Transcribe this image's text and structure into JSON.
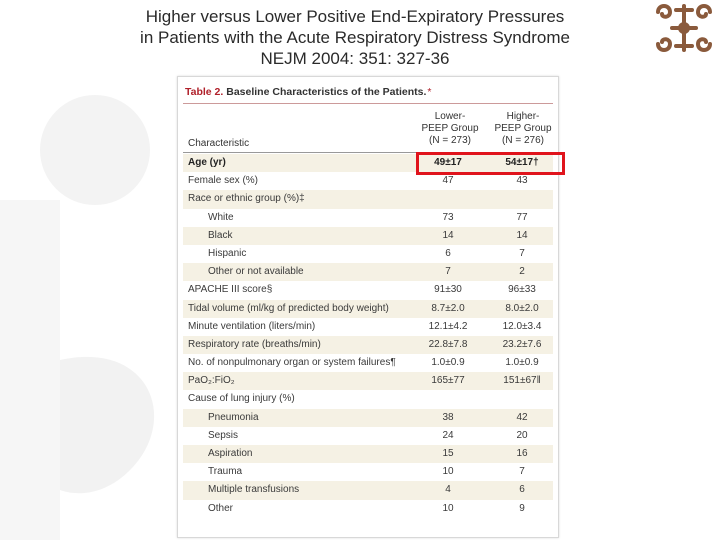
{
  "slide": {
    "title_lines": [
      "Higher versus Lower Positive End-Expiratory Pressures",
      "in Patients with the Acute Respiratory Distress Syndrome",
      "NEJM 2004: 351: 327-36"
    ]
  },
  "table": {
    "number": "Table 2.",
    "caption": "Baseline Characteristics of the Patients.",
    "caption_mark": "*",
    "column_header_characteristic": "Characteristic",
    "lower_group": {
      "line1": "Lower-",
      "line2": "PEEP Group",
      "line3": "(N = 273)"
    },
    "higher_group": {
      "line1": "Higher-",
      "line2": "PEEP Group",
      "line3": "(N = 276)"
    },
    "rows": [
      {
        "label": "Age (yr)",
        "lower": "49±17",
        "higher": "54±17†"
      },
      {
        "label": "Female sex (%)",
        "lower": "47",
        "higher": "43"
      },
      {
        "label": "Race or ethnic group (%)‡",
        "lower": "",
        "higher": ""
      },
      {
        "label": "White",
        "lower": "73",
        "higher": "77"
      },
      {
        "label": "Black",
        "lower": "14",
        "higher": "14"
      },
      {
        "label": "Hispanic",
        "lower": "6",
        "higher": "7"
      },
      {
        "label": "Other or not available",
        "lower": "7",
        "higher": "2"
      },
      {
        "label": "APACHE III score§",
        "lower": "91±30",
        "higher": "96±33"
      },
      {
        "label": "Tidal volume (ml/kg of predicted body weight)",
        "lower": "8.7±2.0",
        "higher": "8.0±2.0"
      },
      {
        "label": "Minute ventilation (liters/min)",
        "lower": "12.1±4.2",
        "higher": "12.0±3.4"
      },
      {
        "label": "Respiratory rate (breaths/min)",
        "lower": "22.8±7.8",
        "higher": "23.2±7.6"
      },
      {
        "label": "No. of nonpulmonary organ or system failures¶",
        "lower": "1.0±0.9",
        "higher": "1.0±0.9"
      },
      {
        "label": "PaO₂:FiO₂",
        "lower": "165±77",
        "higher": "151±67‖"
      },
      {
        "label": "Cause of lung injury (%)",
        "lower": "",
        "higher": ""
      },
      {
        "label": "Pneumonia",
        "lower": "38",
        "higher": "42"
      },
      {
        "label": "Sepsis",
        "lower": "24",
        "higher": "20"
      },
      {
        "label": "Aspiration",
        "lower": "15",
        "higher": "16"
      },
      {
        "label": "Trauma",
        "lower": "10",
        "higher": "7"
      },
      {
        "label": "Multiple transfusions",
        "lower": "4",
        "higher": "6"
      },
      {
        "label": "Other",
        "lower": "10",
        "higher": "9"
      }
    ]
  },
  "colors": {
    "highlight": "#e0141c",
    "accent": "#b0202a",
    "logo": "#8a5a3c",
    "row_shade": "#f5f1e4"
  }
}
